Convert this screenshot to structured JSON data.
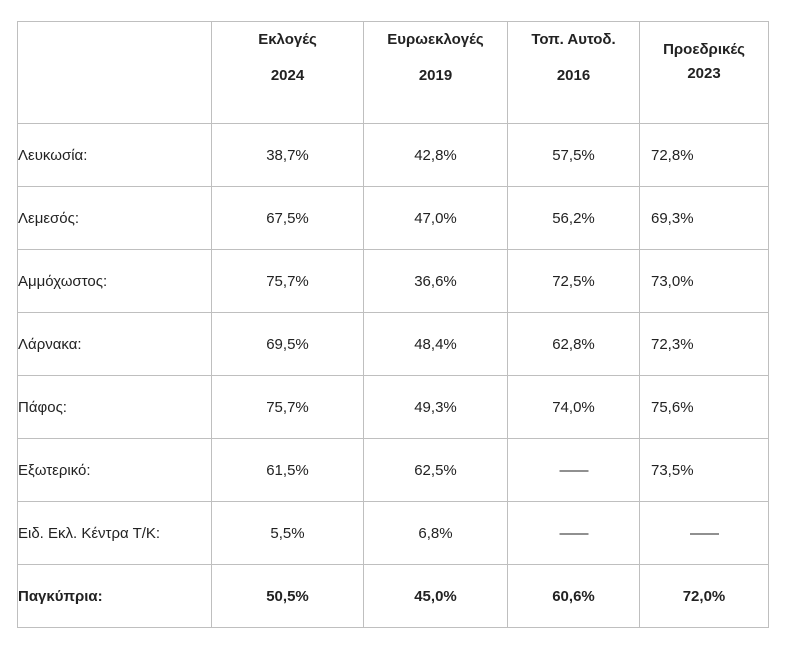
{
  "table": {
    "headers": [
      {
        "line1": "",
        "line2": ""
      },
      {
        "line1": "Εκλογές",
        "line2": "2024"
      },
      {
        "line1": "Ευρωεκλογές",
        "line2": "2019"
      },
      {
        "line1": "Τοπ. Αυτοδ.",
        "line2": "2016"
      },
      {
        "line1": "Προεδρικές",
        "line2": "2023"
      }
    ],
    "rows": [
      {
        "label": "Λευκωσία:",
        "values": [
          "38,7%",
          "42,8%",
          "57,5%",
          "72,8%"
        ]
      },
      {
        "label": "Λεμεσός:",
        "values": [
          "67,5%",
          "47,0%",
          "56,2%",
          "69,3%"
        ]
      },
      {
        "label": "Αμμόχωστος:",
        "values": [
          "75,7%",
          "36,6%",
          "72,5%",
          "73,0%"
        ]
      },
      {
        "label": "Λάρνακα:",
        "values": [
          "69,5%",
          "48,4%",
          "62,8%",
          "72,3%"
        ]
      },
      {
        "label": "Πάφος:",
        "values": [
          "75,7%",
          "49,3%",
          "74,0%",
          "75,6%"
        ]
      },
      {
        "label": "Εξωτερικό:",
        "values": [
          "61,5%",
          "62,5%",
          "——",
          "73,5%"
        ]
      },
      {
        "label": "Ειδ. Εκλ. Κέντρα Τ/Κ:",
        "values": [
          "5,5%",
          "6,8%",
          "——",
          "——"
        ]
      }
    ],
    "total": {
      "label": "Παγκύπρια:",
      "values": [
        "50,5%",
        "45,0%",
        "60,6%",
        "72,0%"
      ]
    }
  }
}
